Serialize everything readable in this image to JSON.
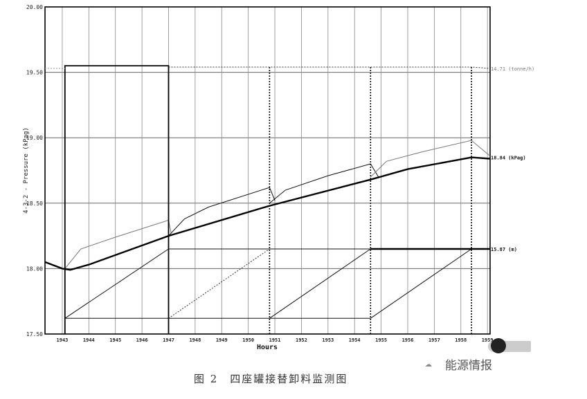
{
  "chart_data": {
    "type": "line",
    "title": "",
    "xlabel": "Hours",
    "ylabel": "4-3-2 - Pressure (kPag)",
    "xlim": [
      1942.35,
      1959.1
    ],
    "ylim": [
      17.5,
      20.0
    ],
    "grid": true,
    "x_ticks": [
      "1943",
      "1944",
      "1945",
      "1946",
      "1947",
      "1948",
      "1949",
      "1950",
      "1951",
      "1952",
      "1953",
      "1954",
      "1955",
      "1956",
      "1957",
      "1958",
      "1959"
    ],
    "y_ticks": [
      "17.50",
      "18.00",
      "18.50",
      "19.00",
      "19.50",
      "20.00"
    ],
    "right_labels": [
      {
        "text": "14.71 (tonne/h)",
        "y": 19.53
      },
      {
        "text": "18.84 (kPag)",
        "y": 18.85
      },
      {
        "text": "15.87 (m)",
        "y": 18.15
      }
    ],
    "series": [
      {
        "style": "thick",
        "x": [
          1942.35,
          1943.0,
          1943.3,
          1944,
          1947,
          1950.8,
          1954.6,
          1956,
          1958.4,
          1959.1
        ],
        "y": [
          18.05,
          18.0,
          17.99,
          18.03,
          18.25,
          18.48,
          18.68,
          18.76,
          18.85,
          18.84
        ]
      },
      {
        "style": "thin-gray",
        "x": [
          1943.1,
          1943.7,
          1945,
          1947,
          1947.1
        ],
        "y": [
          18.0,
          18.15,
          18.24,
          18.37,
          18.27
        ]
      },
      {
        "style": "thin",
        "x": [
          1947,
          1947.6,
          1948.5,
          1950.8,
          1951.0
        ],
        "y": [
          18.25,
          18.38,
          18.47,
          18.62,
          18.52
        ]
      },
      {
        "style": "thin",
        "x": [
          1950.8,
          1951.4,
          1953,
          1954.6,
          1954.9
        ],
        "y": [
          18.5,
          18.6,
          18.71,
          18.8,
          18.7
        ]
      },
      {
        "style": "thin-gray",
        "x": [
          1954.6,
          1955.2,
          1956.5,
          1958.4,
          1959.1
        ],
        "y": [
          18.7,
          18.82,
          18.89,
          18.98,
          18.86
        ]
      },
      {
        "style": "step",
        "x": [
          1943.1,
          1943.1,
          1947,
          1947
        ],
        "y": [
          17.5,
          19.55,
          19.55,
          17.5
        ]
      },
      {
        "style": "dotted",
        "x": [
          1947,
          1958.4,
          1959.1
        ],
        "y": [
          19.54,
          19.54,
          19.53
        ]
      },
      {
        "style": "dotted-drop",
        "x": [
          1950.8,
          1950.8
        ],
        "y": [
          19.54,
          17.5
        ]
      },
      {
        "style": "dotted-drop",
        "x": [
          1954.6,
          1954.6
        ],
        "y": [
          19.54,
          17.5
        ]
      },
      {
        "style": "dotted-drop",
        "x": [
          1958.4,
          1958.4
        ],
        "y": [
          19.54,
          17.5
        ]
      },
      {
        "style": "thin",
        "x": [
          1943.1,
          1947
        ],
        "y": [
          17.62,
          18.15
        ]
      },
      {
        "style": "dotted",
        "x": [
          1947,
          1950.8
        ],
        "y": [
          17.62,
          18.15
        ]
      },
      {
        "style": "thin",
        "x": [
          1950.8,
          1954.6
        ],
        "y": [
          17.62,
          18.15
        ]
      },
      {
        "style": "thin",
        "x": [
          1954.6,
          1958.4
        ],
        "y": [
          17.62,
          18.15
        ]
      },
      {
        "style": "thin",
        "x": [
          1943.1,
          1954.6
        ],
        "y": [
          17.62,
          17.62
        ]
      },
      {
        "style": "thin",
        "x": [
          1947,
          1954.6
        ],
        "y": [
          18.15,
          18.15
        ]
      },
      {
        "style": "thick",
        "x": [
          1954.6,
          1959.1
        ],
        "y": [
          18.15,
          18.15
        ]
      },
      {
        "style": "dotted-gray",
        "x": [
          1942.35,
          1943.1
        ],
        "y": [
          19.53,
          19.53
        ]
      }
    ]
  },
  "caption": "图 2　四座罐接替卸料监测图",
  "watermark": "能源情报"
}
